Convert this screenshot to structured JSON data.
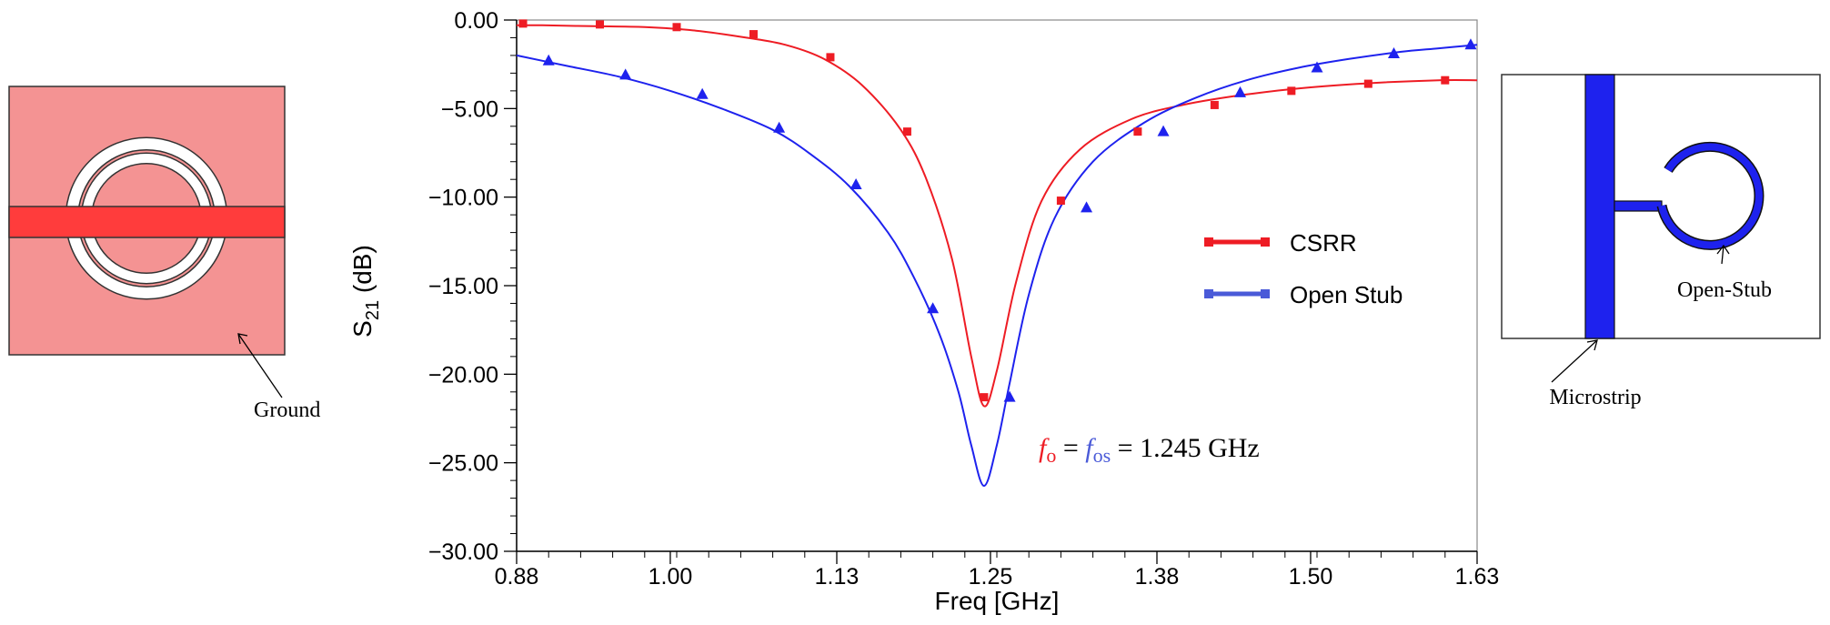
{
  "chart_data": {
    "type": "line",
    "xlabel": "Freq [GHz]",
    "ylabel_main": "S",
    "ylabel_sub": "21",
    "ylabel_unit": " (dB)",
    "xlim": [
      0.88,
      1.63
    ],
    "ylim": [
      -30,
      0
    ],
    "x_ticks": [
      0.88,
      1.0,
      1.13,
      1.25,
      1.38,
      1.5,
      1.63
    ],
    "x_tick_labels": [
      "0.88",
      "1.00",
      "1.13",
      "1.25",
      "1.38",
      "1.50",
      "1.63"
    ],
    "y_ticks": [
      0,
      -5,
      -10,
      -15,
      -20,
      -25,
      -30
    ],
    "y_tick_labels": [
      "0.00",
      "−5.00",
      "−10.00",
      "−15.00",
      "−20.00",
      "−25.00",
      "−30.00"
    ],
    "grid": false,
    "legend_position": "right",
    "series": [
      {
        "name": "CSRR",
        "color": "#ee1c24",
        "marker": "square",
        "x": [
          0.88,
          0.9,
          0.94,
          0.98,
          1.02,
          1.06,
          1.09,
          1.12,
          1.15,
          1.18,
          1.2,
          1.22,
          1.235,
          1.245,
          1.255,
          1.27,
          1.29,
          1.32,
          1.36,
          1.4,
          1.45,
          1.5,
          1.55,
          1.6,
          1.63
        ],
        "y": [
          -0.3,
          -0.3,
          -0.35,
          -0.4,
          -0.6,
          -1.0,
          -1.4,
          -2.2,
          -3.7,
          -6.2,
          -9.0,
          -13.5,
          -19.0,
          -21.8,
          -19.8,
          -14.8,
          -10.2,
          -7.3,
          -5.6,
          -4.8,
          -4.2,
          -3.8,
          -3.55,
          -3.4,
          -3.4
        ],
        "marker_x": [
          0.885,
          0.945,
          1.005,
          1.065,
          1.125,
          1.185,
          1.245,
          1.305,
          1.365,
          1.425,
          1.485,
          1.545,
          1.605
        ],
        "marker_y": [
          -0.2,
          -0.25,
          -0.4,
          -0.8,
          -2.1,
          -6.3,
          -21.3,
          -10.2,
          -6.3,
          -4.8,
          -4.0,
          -3.6,
          -3.4
        ]
      },
      {
        "name": "Open Stub",
        "color": "#1e22ee",
        "marker": "triangle",
        "x": [
          0.88,
          0.92,
          0.96,
          1.0,
          1.04,
          1.08,
          1.11,
          1.14,
          1.17,
          1.19,
          1.21,
          1.225,
          1.235,
          1.245,
          1.255,
          1.265,
          1.28,
          1.3,
          1.33,
          1.37,
          1.41,
          1.45,
          1.49,
          1.53,
          1.57,
          1.6,
          1.63
        ],
        "y": [
          -2.0,
          -2.6,
          -3.2,
          -4.0,
          -5.0,
          -6.2,
          -7.6,
          -9.4,
          -12.0,
          -14.5,
          -17.7,
          -21.0,
          -24.0,
          -26.3,
          -24.0,
          -20.5,
          -15.5,
          -11.2,
          -8.0,
          -5.8,
          -4.4,
          -3.4,
          -2.7,
          -2.2,
          -1.8,
          -1.6,
          -1.4
        ],
        "marker_x": [
          0.905,
          0.965,
          1.025,
          1.085,
          1.145,
          1.205,
          1.265,
          1.325,
          1.385,
          1.445,
          1.505,
          1.565,
          1.625
        ],
        "marker_y": [
          -2.3,
          -3.1,
          -4.2,
          -6.1,
          -9.3,
          -16.3,
          -21.3,
          -10.6,
          -6.3,
          -4.1,
          -2.7,
          -1.9,
          -1.4
        ]
      }
    ],
    "annotation": {
      "f0": "f",
      "f0_sub": "o",
      "eq1": " = ",
      "fos": "f",
      "fos_sub": "os",
      "eq2": " = 1.245 GHz",
      "f0_color": "#ee1c24",
      "fos_color": "#4a5ad8"
    }
  },
  "left_figure": {
    "label": "Ground",
    "plate_color": "#f49393",
    "strip_color": "#ff3c3c"
  },
  "right_figure": {
    "label_stub": "Open-Stub",
    "label_microstrip": "Microstrip",
    "metal_color": "#1e22ee"
  }
}
